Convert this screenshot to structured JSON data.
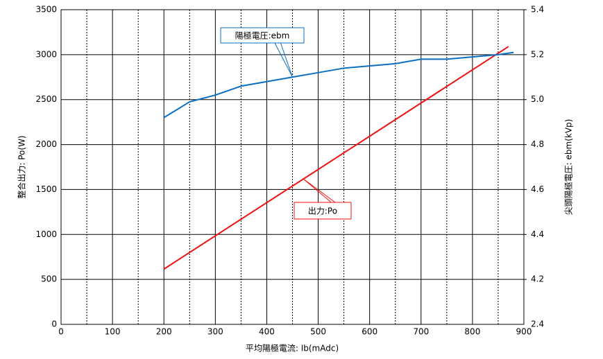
{
  "chart_data": {
    "type": "line",
    "x_label": "平均陽極電流: Ib(mAdc)",
    "y_label": "整合出力: Po(W)",
    "y2_label": "尖頭陽極電圧: ebm(kVp)",
    "xlim": [
      0,
      900
    ],
    "xticks": [
      0,
      100,
      200,
      300,
      400,
      500,
      600,
      700,
      800,
      900
    ],
    "xminor": [
      50,
      150,
      250,
      350,
      450,
      550,
      650,
      750,
      850
    ],
    "ylim": [
      0,
      3500
    ],
    "yticks": [
      0,
      500,
      1000,
      1500,
      2000,
      2500,
      3000,
      3500
    ],
    "y2lim": [
      4.0,
      5.4
    ],
    "y2ticks": [
      4.2,
      4.4,
      4.6,
      4.8,
      {
        "value": 5.0,
        "label": "5.0"
      },
      5.2,
      5.4
    ],
    "y2_break_label": "2.4",
    "grid": true,
    "series": [
      {
        "name": "出力:Po",
        "color": "#ee1111",
        "axis": "y",
        "x": [
          200,
          870
        ],
        "values": [
          615,
          3090
        ]
      },
      {
        "name": "陽極電圧:ebm",
        "color": "#0a6fc2",
        "axis": "y2",
        "x": [
          200,
          250,
          300,
          350,
          400,
          450,
          500,
          550,
          600,
          650,
          700,
          750,
          800,
          850,
          880
        ],
        "values": [
          4.92,
          4.99,
          5.02,
          5.06,
          5.08,
          5.1,
          5.12,
          5.14,
          5.15,
          5.16,
          5.18,
          5.18,
          5.19,
          5.2,
          5.21
        ]
      }
    ]
  }
}
